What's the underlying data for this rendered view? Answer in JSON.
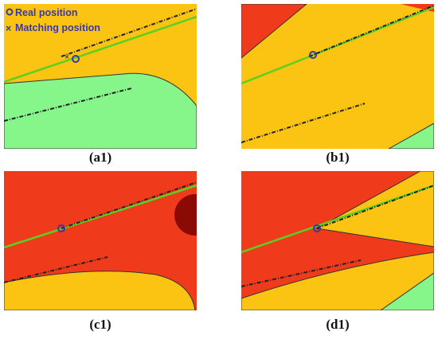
{
  "legend": {
    "items": [
      {
        "label": "Real position"
      },
      {
        "label": "Matching position"
      }
    ]
  },
  "panels": [
    {
      "label": "(a1)"
    },
    {
      "label": "(b1)"
    },
    {
      "label": "(c1)"
    },
    {
      "label": "(d1)"
    }
  ]
}
